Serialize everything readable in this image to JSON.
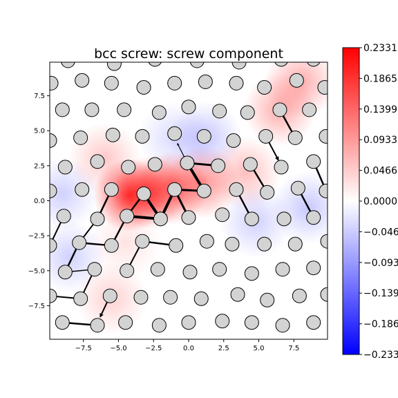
{
  "chart_data": {
    "type": "scatter",
    "title": "bcc screw: screw component",
    "xlabel": "",
    "ylabel": "",
    "xlim": [
      -9.9,
      9.9
    ],
    "ylim": [
      -9.9,
      9.9
    ],
    "xticks": [
      -7.5,
      -5.0,
      -2.5,
      0.0,
      2.5,
      5.0,
      7.5
    ],
    "xtick_labels": [
      "−7.5",
      "−5.0",
      "−2.5",
      "0.0",
      "2.5",
      "5.0",
      "7.5"
    ],
    "yticks": [
      -7.5,
      -5.0,
      -2.5,
      0.0,
      2.5,
      5.0,
      7.5
    ],
    "ytick_labels": [
      "−7.5",
      "−5.0",
      "−2.5",
      "0.0",
      "2.5",
      "5.0",
      "7.5"
    ],
    "colorbar": {
      "colormap": "bwr",
      "vmin": -0.2331,
      "vmax": 0.2331,
      "ticks": [
        0.2331,
        0.1865,
        0.1399,
        0.0933,
        0.0466,
        0.0,
        -0.0466,
        -0.0933,
        -0.1399,
        -0.1865,
        -0.2331
      ],
      "tick_labels": [
        "0.2331",
        "0.1865",
        "0.1399",
        "0.0933",
        "0.0466",
        "0.0000",
        "−0.0466",
        "−0.0933",
        "−0.1399",
        "−0.1865",
        "−0.2331"
      ]
    },
    "field_blobs": [
      {
        "x": -4.2,
        "y": 0.4,
        "value": 0.22
      },
      {
        "x": -2.8,
        "y": 0.6,
        "value": 0.15
      },
      {
        "x": -1.2,
        "y": 0.9,
        "value": 0.16
      },
      {
        "x": 1.0,
        "y": 1.3,
        "value": 0.12
      },
      {
        "x": -6.0,
        "y": 3.0,
        "value": 0.06
      },
      {
        "x": 4.0,
        "y": 2.0,
        "value": 0.07
      },
      {
        "x": 6.5,
        "y": 6.5,
        "value": 0.09
      },
      {
        "x": 8.0,
        "y": 8.5,
        "value": 0.09
      },
      {
        "x": -5.5,
        "y": -7.0,
        "value": 0.05
      },
      {
        "x": -4.5,
        "y": -3.0,
        "value": 0.03
      },
      {
        "x": 1.2,
        "y": 4.5,
        "value": -0.06
      },
      {
        "x": -1.0,
        "y": 4.5,
        "value": -0.04
      },
      {
        "x": 4.8,
        "y": -1.5,
        "value": -0.05
      },
      {
        "x": 8.5,
        "y": -0.5,
        "value": -0.06
      },
      {
        "x": -9.0,
        "y": 0.5,
        "value": -0.05
      },
      {
        "x": -8.5,
        "y": -4.0,
        "value": -0.05
      }
    ],
    "atoms": [
      [
        -8.6,
        10.0
      ],
      [
        -5.3,
        9.8
      ],
      [
        -2.4,
        10.1
      ],
      [
        0.6,
        10.0
      ],
      [
        3.6,
        9.9
      ],
      [
        6.6,
        10.1
      ],
      [
        8.9,
        10.1
      ],
      [
        -9.8,
        8.4
      ],
      [
        -7.6,
        8.6
      ],
      [
        -5.5,
        8.4
      ],
      [
        -3.2,
        8.1
      ],
      [
        -1.0,
        8.4
      ],
      [
        1.2,
        8.5
      ],
      [
        3.4,
        8.4
      ],
      [
        5.4,
        8.1
      ],
      [
        7.7,
        8.6
      ],
      [
        9.7,
        8.1
      ],
      [
        -9.0,
        6.5
      ],
      [
        -6.9,
        6.5
      ],
      [
        -4.6,
        6.5
      ],
      [
        -2.1,
        6.3
      ],
      [
        0.0,
        6.7
      ],
      [
        2.2,
        6.4
      ],
      [
        4.2,
        6.3
      ],
      [
        6.5,
        6.5
      ],
      [
        8.6,
        6.5
      ],
      [
        -9.9,
        4.3
      ],
      [
        -7.7,
        4.5
      ],
      [
        -5.4,
        4.7
      ],
      [
        -3.3,
        4.6
      ],
      [
        -1.0,
        4.8
      ],
      [
        1.1,
        4.6
      ],
      [
        3.2,
        4.3
      ],
      [
        5.5,
        4.6
      ],
      [
        7.6,
        4.5
      ],
      [
        9.8,
        4.6
      ],
      [
        -8.8,
        2.4
      ],
      [
        -6.5,
        2.8
      ],
      [
        -4.3,
        2.4
      ],
      [
        -2.4,
        2.6
      ],
      [
        -0.1,
        2.7
      ],
      [
        2.1,
        2.5
      ],
      [
        4.4,
        2.6
      ],
      [
        6.6,
        2.4
      ],
      [
        8.9,
        2.8
      ],
      [
        -9.9,
        0.7
      ],
      [
        -7.6,
        0.8
      ],
      [
        -5.5,
        0.8
      ],
      [
        -3.2,
        0.5
      ],
      [
        -1.0,
        0.8
      ],
      [
        1.1,
        0.7
      ],
      [
        3.4,
        0.8
      ],
      [
        5.6,
        0.6
      ],
      [
        7.8,
        0.9
      ],
      [
        9.8,
        0.7
      ],
      [
        -8.9,
        -1.1
      ],
      [
        -6.5,
        -1.3
      ],
      [
        -4.4,
        -1.1
      ],
      [
        -2.0,
        -1.3
      ],
      [
        0.0,
        -1.2
      ],
      [
        2.4,
        -1.0
      ],
      [
        4.5,
        -1.3
      ],
      [
        6.8,
        -1.3
      ],
      [
        8.9,
        -1.2
      ],
      [
        -9.9,
        -3.2
      ],
      [
        -7.8,
        -3.0
      ],
      [
        -5.5,
        -3.2
      ],
      [
        -3.3,
        -2.9
      ],
      [
        -0.9,
        -3.2
      ],
      [
        1.3,
        -2.9
      ],
      [
        3.1,
        -3.1
      ],
      [
        5.4,
        -3.1
      ],
      [
        7.6,
        -3.1
      ],
      [
        9.9,
        -2.9
      ],
      [
        -8.8,
        -5.1
      ],
      [
        -6.7,
        -4.9
      ],
      [
        -4.4,
        -5.0
      ],
      [
        -2.2,
        -4.9
      ],
      [
        0.1,
        -5.1
      ],
      [
        2.2,
        -4.9
      ],
      [
        4.5,
        -5.2
      ],
      [
        6.7,
        -4.9
      ],
      [
        8.9,
        -4.8
      ],
      [
        -9.9,
        -6.8
      ],
      [
        -7.7,
        -7.0
      ],
      [
        -5.6,
        -6.8
      ],
      [
        -3.4,
        -6.9
      ],
      [
        -1.3,
        -6.9
      ],
      [
        0.9,
        -7.0
      ],
      [
        3.5,
        -6.7
      ],
      [
        5.6,
        -7.1
      ],
      [
        7.9,
        -6.8
      ],
      [
        9.9,
        -6.7
      ],
      [
        -9.0,
        -8.7
      ],
      [
        -6.5,
        -8.9
      ],
      [
        -4.5,
        -8.7
      ],
      [
        -2.1,
        -8.9
      ],
      [
        0.0,
        -8.7
      ],
      [
        2.4,
        -8.6
      ],
      [
        4.5,
        -8.7
      ],
      [
        6.7,
        -8.9
      ],
      [
        8.9,
        -8.7
      ]
    ],
    "arrows": [
      [
        -4.4,
        -1.1,
        -2.0,
        -1.3,
        4
      ],
      [
        -2.0,
        -1.3,
        -3.2,
        0.5,
        4
      ],
      [
        -1.0,
        0.8,
        -2.0,
        -1.3,
        4
      ],
      [
        1.1,
        0.7,
        -0.1,
        2.7,
        4
      ],
      [
        1.1,
        0.7,
        -1.0,
        0.8,
        3
      ],
      [
        -1.0,
        0.8,
        0.0,
        -1.2,
        3
      ],
      [
        2.1,
        2.5,
        -0.1,
        2.7,
        3
      ],
      [
        -3.2,
        0.5,
        -4.4,
        -1.1,
        2.5
      ],
      [
        -4.4,
        -1.1,
        -5.5,
        -3.2,
        2.5
      ],
      [
        -5.5,
        0.8,
        -6.5,
        -1.3,
        2.5
      ],
      [
        -7.8,
        -3.0,
        -8.8,
        -5.1,
        2.5
      ],
      [
        -6.5,
        -1.3,
        -7.8,
        -3.0,
        2
      ],
      [
        -7.8,
        -3.0,
        -5.5,
        -3.2,
        2.5
      ],
      [
        -3.3,
        -2.9,
        -0.9,
        -3.2,
        2.5
      ],
      [
        -3.3,
        -2.9,
        -4.4,
        -5.0,
        2
      ],
      [
        -9.9,
        -3.2,
        -8.9,
        -1.1,
        2
      ],
      [
        -9.0,
        -8.7,
        -6.5,
        -8.9,
        2.5
      ],
      [
        -9.9,
        -6.8,
        -7.7,
        -7.0,
        2
      ],
      [
        -7.7,
        -7.0,
        -6.7,
        -4.9,
        2
      ],
      [
        -5.6,
        -6.8,
        -6.3,
        -8.3,
        2
      ],
      [
        -8.8,
        -5.1,
        -6.7,
        -4.9,
        1.5
      ],
      [
        4.4,
        2.6,
        5.6,
        0.6,
        2.5
      ],
      [
        3.4,
        0.8,
        4.5,
        -1.3,
        2.5
      ],
      [
        7.8,
        0.9,
        8.9,
        -1.2,
        2.5
      ],
      [
        8.9,
        2.8,
        9.8,
        0.7,
        2.5
      ],
      [
        6.5,
        6.5,
        7.6,
        4.5,
        2.5
      ],
      [
        5.5,
        4.6,
        6.4,
        2.9,
        2
      ],
      [
        -0.1,
        2.7,
        -0.8,
        4.1,
        1.2
      ]
    ]
  }
}
